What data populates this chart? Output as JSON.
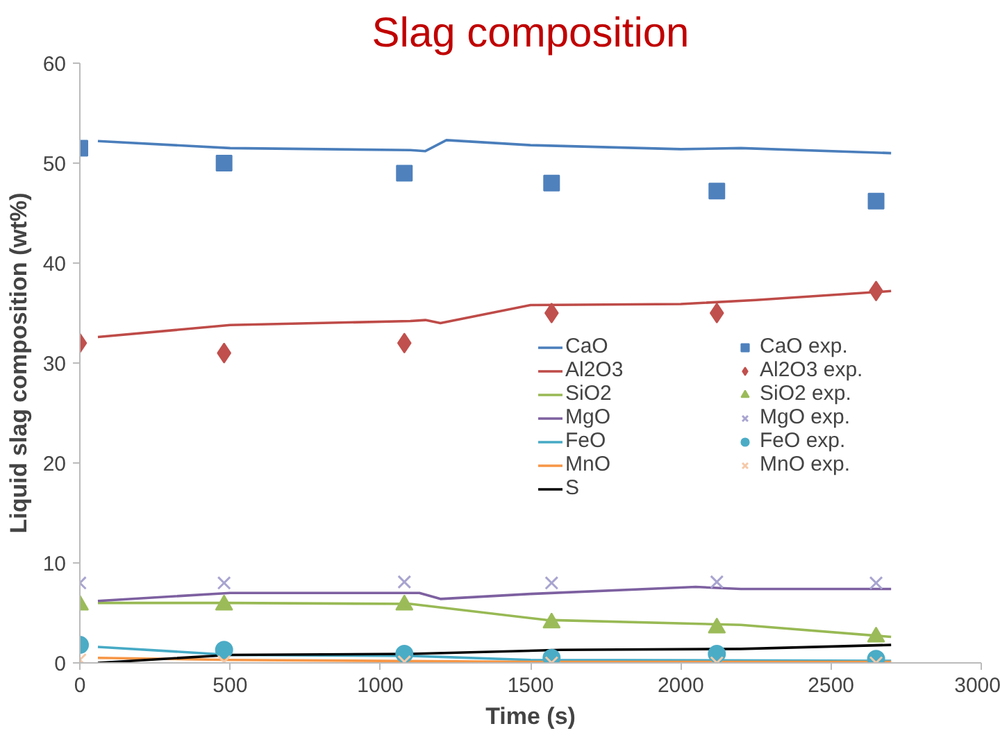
{
  "chart_data": {
    "type": "line",
    "title": "Slag composition",
    "xlabel": "Time (s)",
    "ylabel": "Liquid slag composition (wt%)",
    "xlim": [
      0,
      3000
    ],
    "ylim": [
      0,
      60
    ],
    "xticks": [
      0,
      500,
      1000,
      1500,
      2000,
      2500,
      3000
    ],
    "yticks": [
      0,
      10,
      20,
      30,
      40,
      50,
      60
    ],
    "grid": false,
    "legend": "right",
    "line_style": "solid",
    "series": [
      {
        "name": "CaO",
        "color": "#4a7ebb",
        "x": [
          60,
          500,
          1100,
          1150,
          1220,
          1500,
          2000,
          2200,
          2700
        ],
        "values": [
          52.2,
          51.5,
          51.3,
          51.2,
          52.3,
          51.8,
          51.4,
          51.5,
          51.0
        ]
      },
      {
        "name": "Al2O3",
        "color": "#be4b48",
        "x": [
          60,
          500,
          1100,
          1150,
          1200,
          1500,
          2000,
          2250,
          2700
        ],
        "values": [
          32.6,
          33.8,
          34.2,
          34.3,
          34.0,
          35.8,
          35.9,
          36.3,
          37.2
        ]
      },
      {
        "name": "SiO2",
        "color": "#98b954",
        "x": [
          60,
          500,
          1100,
          1550,
          2200,
          2700
        ],
        "values": [
          6.0,
          6.0,
          5.9,
          4.3,
          3.8,
          2.6
        ]
      },
      {
        "name": "MgO",
        "color": "#7d60a0",
        "x": [
          60,
          500,
          1130,
          1200,
          1500,
          2050,
          2200,
          2700
        ],
        "values": [
          6.2,
          7.0,
          7.0,
          6.4,
          6.9,
          7.6,
          7.4,
          7.4
        ]
      },
      {
        "name": "FeO",
        "color": "#46aac5",
        "x": [
          60,
          500,
          1100,
          1500,
          2700
        ],
        "values": [
          1.6,
          0.8,
          0.7,
          0.3,
          0.2
        ]
      },
      {
        "name": "MnO",
        "color": "#f79646",
        "x": [
          60,
          500,
          1500,
          2700
        ],
        "values": [
          0.5,
          0.3,
          0.1,
          0.1
        ]
      },
      {
        "name": "S",
        "color": "#000000",
        "x": [
          60,
          500,
          1100,
          1600,
          2200,
          2700
        ],
        "values": [
          0.0,
          0.8,
          0.9,
          1.3,
          1.4,
          1.8
        ]
      },
      {
        "name": "CaO exp.",
        "type": "scatter",
        "marker": "square",
        "color": "#4f81bd",
        "x": [
          0,
          480,
          1080,
          1570,
          2120,
          2650
        ],
        "values": [
          51.5,
          50.0,
          49.0,
          48.0,
          47.2,
          46.2
        ]
      },
      {
        "name": "Al2O3 exp.",
        "type": "scatter",
        "marker": "diamond",
        "color": "#c0504d",
        "x": [
          0,
          480,
          1080,
          1570,
          2120,
          2650
        ],
        "values": [
          32.0,
          31.0,
          32.0,
          35.0,
          35.0,
          37.2
        ]
      },
      {
        "name": "SiO2 exp.",
        "type": "scatter",
        "marker": "triangle",
        "color": "#9bbb59",
        "x": [
          0,
          480,
          1080,
          1570,
          2120,
          2650
        ],
        "values": [
          5.8,
          5.8,
          5.8,
          4.0,
          3.5,
          2.6
        ]
      },
      {
        "name": "MgO exp.",
        "type": "scatter",
        "marker": "cross",
        "color": "#a8a4d0",
        "x": [
          0,
          480,
          1080,
          1570,
          2120,
          2650
        ],
        "values": [
          8.0,
          8.0,
          8.1,
          8.0,
          8.1,
          8.0
        ]
      },
      {
        "name": "FeO exp.",
        "type": "scatter",
        "marker": "circle",
        "color": "#4bacc6",
        "x": [
          0,
          480,
          1080,
          1570,
          2120,
          2650
        ],
        "values": [
          1.8,
          1.3,
          0.9,
          0.5,
          0.9,
          0.4
        ]
      },
      {
        "name": "MnO exp.",
        "type": "scatter",
        "marker": "cross",
        "color": "#f5c9a8",
        "x": [
          0,
          480,
          1080,
          1570,
          2120,
          2650
        ],
        "values": [
          0.3,
          0.1,
          0.1,
          0.0,
          0.0,
          0.0
        ]
      }
    ]
  }
}
